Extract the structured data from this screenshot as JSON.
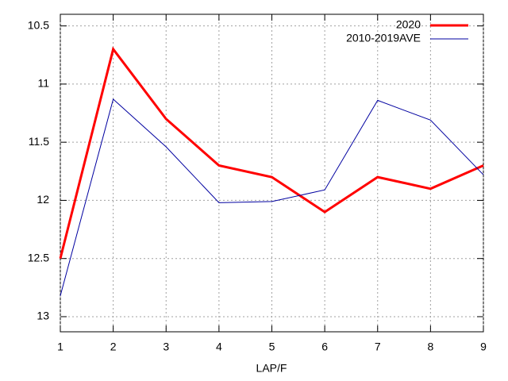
{
  "chart_data": {
    "type": "line",
    "x_label": "LAP/F",
    "x": [
      1,
      2,
      3,
      4,
      5,
      6,
      7,
      8,
      9
    ],
    "series": [
      {
        "name": "2020",
        "color": "#ff0000",
        "width": 3,
        "values": [
          12.5,
          10.7,
          11.3,
          11.7,
          11.8,
          12.1,
          11.8,
          11.9,
          11.7
        ]
      },
      {
        "name": "2010-2019AVE",
        "color": "#0000a0",
        "width": 1,
        "values": [
          12.82,
          11.13,
          11.54,
          12.02,
          12.01,
          11.91,
          11.14,
          11.31,
          11.78
        ]
      }
    ],
    "xlim": [
      1,
      9
    ],
    "xticks": [
      1,
      2,
      3,
      4,
      5,
      6,
      7,
      8,
      9
    ],
    "ylim": [
      13.13,
      10.4
    ],
    "yticks": [
      10.5,
      11,
      11.5,
      12,
      12.5,
      13
    ],
    "grid": true,
    "legend": "top-right"
  }
}
